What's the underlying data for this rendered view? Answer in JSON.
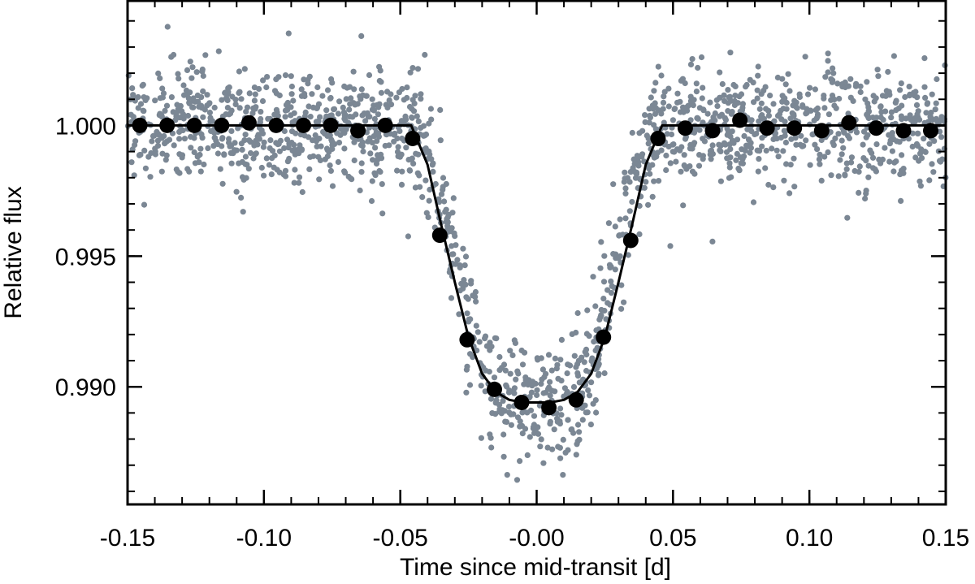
{
  "colors": {
    "raw_points": "#7b8794",
    "binned_points": "#000000",
    "model_line": "#000000",
    "axes": "#000000",
    "background": "#ffffff"
  },
  "chart_data": {
    "type": "scatter",
    "title": "",
    "xlabel": "Time since mid-transit [d]",
    "ylabel": "Relative flux",
    "xlim": [
      -0.15,
      0.15
    ],
    "ylim": [
      0.9855,
      1.0048
    ],
    "x_ticks": [
      -0.15,
      -0.1,
      -0.05,
      0.0,
      0.05,
      0.1,
      0.15
    ],
    "x_tick_labels": [
      "-0.15",
      "-0.10",
      "-0.05",
      "-0.00",
      "0.05",
      "0.10",
      "0.15"
    ],
    "y_ticks": [
      0.99,
      0.995,
      1.0
    ],
    "y_tick_labels": [
      "0.990",
      "0.995",
      "1.000"
    ],
    "grid": false,
    "legend": "none",
    "series": [
      {
        "kind": "raw_scatter",
        "n_points": 1800,
        "noise_sigma": 0.0011
      },
      {
        "kind": "binned",
        "points": [
          [
            -0.1455,
            1.0
          ],
          [
            -0.1355,
            1.0
          ],
          [
            -0.1255,
            1.0
          ],
          [
            -0.1155,
            1.0
          ],
          [
            -0.1055,
            1.0001
          ],
          [
            -0.0955,
            1.0
          ],
          [
            -0.0855,
            1.0
          ],
          [
            -0.0755,
            1.0
          ],
          [
            -0.0655,
            0.9998
          ],
          [
            -0.0555,
            1.0
          ],
          [
            -0.0455,
            0.9995
          ],
          [
            -0.0355,
            0.9958
          ],
          [
            -0.0255,
            0.9918
          ],
          [
            -0.0155,
            0.9899
          ],
          [
            -0.0055,
            0.9894
          ],
          [
            0.0045,
            0.9892
          ],
          [
            0.0145,
            0.9895
          ],
          [
            0.0245,
            0.9919
          ],
          [
            0.0345,
            0.9956
          ],
          [
            0.0445,
            0.9995
          ],
          [
            0.0545,
            0.9999
          ],
          [
            0.0645,
            0.9998
          ],
          [
            0.0745,
            1.0002
          ],
          [
            0.0845,
            0.9999
          ],
          [
            0.0945,
            0.9999
          ],
          [
            0.1045,
            0.9998
          ],
          [
            0.1145,
            1.0001
          ],
          [
            0.1245,
            0.9999
          ],
          [
            0.1345,
            0.9998
          ],
          [
            0.1445,
            0.9998
          ]
        ]
      },
      {
        "kind": "model",
        "points": [
          [
            -0.15,
            1.0
          ],
          [
            -0.046,
            1.0
          ],
          [
            -0.04,
            0.9985
          ],
          [
            -0.035,
            0.9962
          ],
          [
            -0.03,
            0.994
          ],
          [
            -0.025,
            0.9919
          ],
          [
            -0.02,
            0.9905
          ],
          [
            -0.015,
            0.9898
          ],
          [
            -0.01,
            0.9895
          ],
          [
            -0.005,
            0.9894
          ],
          [
            0.0,
            0.9894
          ],
          [
            0.005,
            0.9894
          ],
          [
            0.01,
            0.9895
          ],
          [
            0.015,
            0.9898
          ],
          [
            0.02,
            0.9905
          ],
          [
            0.025,
            0.9919
          ],
          [
            0.03,
            0.994
          ],
          [
            0.035,
            0.9962
          ],
          [
            0.04,
            0.9985
          ],
          [
            0.046,
            1.0
          ],
          [
            0.15,
            1.0
          ]
        ]
      }
    ]
  }
}
